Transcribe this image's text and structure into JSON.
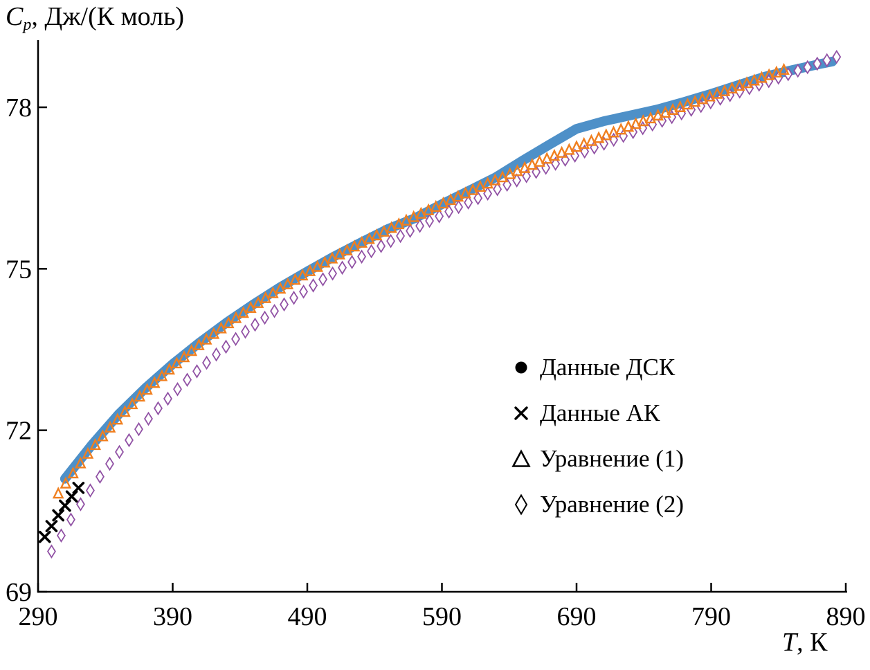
{
  "figure": {
    "background": "#ffffff",
    "y_axis": {
      "var": "C",
      "var_sub": "p",
      "unit_suffix": ", Дж/(К моль)",
      "ticks": [
        69,
        72,
        75,
        78
      ],
      "range": [
        69,
        79.3
      ]
    },
    "x_axis": {
      "var": "T",
      "unit_suffix": ", К",
      "ticks": [
        290,
        390,
        490,
        590,
        690,
        790,
        890
      ],
      "range": [
        290,
        890
      ]
    },
    "legend": {
      "items": [
        {
          "marker": "filled-circle",
          "label": "Данные ДСК"
        },
        {
          "marker": "x-cross",
          "label": "Данные АК"
        },
        {
          "marker": "open-triangle",
          "label": "Уравнение (1)"
        },
        {
          "marker": "open-diamond",
          "label": "Уравнение (2)"
        }
      ]
    }
  },
  "chart_data": {
    "type": "scatter",
    "title": "",
    "xlabel": "T, К",
    "ylabel": "Cp, Дж/(К моль)",
    "xlim": [
      290,
      890
    ],
    "ylim": [
      69,
      79.3
    ],
    "grid": false,
    "legend_position": "center-right",
    "series": [
      {
        "name": "Данные ДСК",
        "marker": "filled-circle",
        "color": "#4e90c8",
        "render": "thick-line",
        "line_width": 14,
        "points": [
          [
            310,
            71.1
          ],
          [
            330,
            71.73
          ],
          [
            350,
            72.3
          ],
          [
            370,
            72.79
          ],
          [
            390,
            73.23
          ],
          [
            410,
            73.63
          ],
          [
            430,
            74.0
          ],
          [
            450,
            74.34
          ],
          [
            470,
            74.66
          ],
          [
            490,
            74.95
          ],
          [
            510,
            75.23
          ],
          [
            530,
            75.49
          ],
          [
            550,
            75.74
          ],
          [
            570,
            75.94
          ],
          [
            590,
            76.2
          ],
          [
            610,
            76.45
          ],
          [
            630,
            76.7
          ],
          [
            650,
            77.01
          ],
          [
            670,
            77.31
          ],
          [
            690,
            77.6
          ],
          [
            710,
            77.74
          ],
          [
            730,
            77.85
          ],
          [
            750,
            77.96
          ],
          [
            770,
            78.1
          ],
          [
            790,
            78.25
          ],
          [
            810,
            78.41
          ],
          [
            830,
            78.57
          ],
          [
            850,
            78.69
          ],
          [
            870,
            78.8
          ],
          [
            880,
            78.85
          ]
        ]
      },
      {
        "name": "Данные АК",
        "marker": "x-cross",
        "color": "#000000",
        "render": "markers",
        "points": [
          [
            295,
            70.02
          ],
          [
            300,
            70.22
          ],
          [
            305,
            70.42
          ],
          [
            310,
            70.6
          ],
          [
            315,
            70.77
          ],
          [
            320,
            70.93
          ]
        ]
      },
      {
        "name": "Уравнение (1)",
        "marker": "open-triangle",
        "color": "#f07f1f",
        "render": "marker-chain",
        "marker_step_K": 5.5,
        "points": [
          [
            305,
            70.82
          ],
          [
            325,
            71.5
          ],
          [
            345,
            72.09
          ],
          [
            365,
            72.61
          ],
          [
            385,
            73.07
          ],
          [
            405,
            73.49
          ],
          [
            425,
            73.87
          ],
          [
            445,
            74.22
          ],
          [
            465,
            74.55
          ],
          [
            485,
            74.85
          ],
          [
            505,
            75.14
          ],
          [
            525,
            75.41
          ],
          [
            545,
            75.66
          ],
          [
            565,
            75.91
          ],
          [
            585,
            76.14
          ],
          [
            605,
            76.37
          ],
          [
            625,
            76.59
          ],
          [
            645,
            76.8
          ],
          [
            665,
            77.01
          ],
          [
            685,
            77.21
          ],
          [
            705,
            77.41
          ],
          [
            725,
            77.6
          ],
          [
            745,
            77.79
          ],
          [
            765,
            77.98
          ],
          [
            785,
            78.16
          ],
          [
            805,
            78.34
          ],
          [
            825,
            78.52
          ],
          [
            845,
            78.7
          ]
        ]
      },
      {
        "name": "Уравнение (2)",
        "marker": "open-diamond",
        "color": "#9152a5",
        "render": "marker-chain",
        "marker_step_K": 7.2,
        "points": [
          [
            300,
            69.75
          ],
          [
            320,
            70.57
          ],
          [
            340,
            71.28
          ],
          [
            360,
            71.89
          ],
          [
            380,
            72.43
          ],
          [
            400,
            72.92
          ],
          [
            420,
            73.36
          ],
          [
            440,
            73.76
          ],
          [
            460,
            74.12
          ],
          [
            480,
            74.46
          ],
          [
            500,
            74.78
          ],
          [
            520,
            75.08
          ],
          [
            540,
            75.36
          ],
          [
            560,
            75.62
          ],
          [
            580,
            75.88
          ],
          [
            600,
            76.12
          ],
          [
            620,
            76.35
          ],
          [
            640,
            76.58
          ],
          [
            660,
            76.8
          ],
          [
            680,
            77.01
          ],
          [
            700,
            77.22
          ],
          [
            720,
            77.42
          ],
          [
            740,
            77.62
          ],
          [
            760,
            77.81
          ],
          [
            780,
            78.0
          ],
          [
            800,
            78.19
          ],
          [
            820,
            78.37
          ],
          [
            840,
            78.55
          ],
          [
            860,
            78.73
          ],
          [
            880,
            78.91
          ],
          [
            885,
            78.95
          ]
        ]
      }
    ]
  }
}
